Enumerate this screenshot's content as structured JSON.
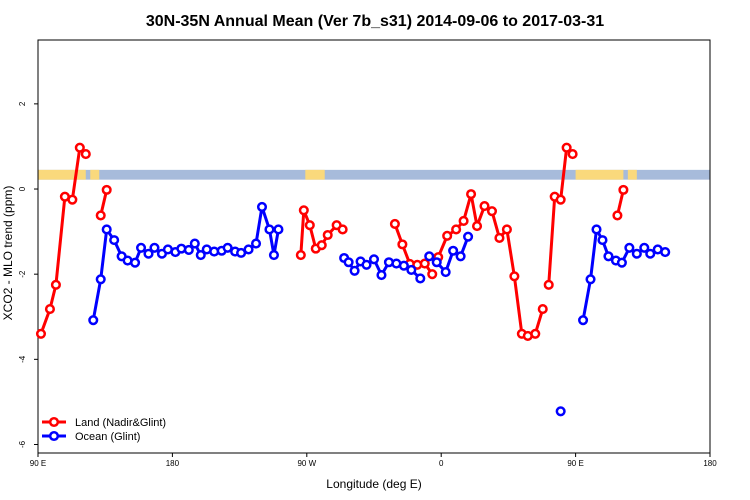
{
  "chart_data": {
    "type": "line",
    "title": "30N-35N Annual Mean (Ver 7b_s31)   2014-09-06 to 2017-03-31",
    "xlabel": "Longitude (deg E)",
    "ylabel": "XCO2 - MLO trend (ppm)",
    "x_tick_labels": [
      "90 E",
      "180",
      "90 W",
      "0",
      "90 E",
      "180"
    ],
    "x_ticks": [
      90,
      180,
      270,
      360,
      450,
      540
    ],
    "xlim": [
      90,
      540
    ],
    "y_tick_labels": [
      "-6",
      "-4",
      "-2",
      "0",
      "2"
    ],
    "y_ticks": [
      -6,
      -4,
      -2,
      0,
      2
    ],
    "ylim": [
      -6.2,
      3.5
    ],
    "grid": false,
    "legend_position": "bottom-left",
    "land_mask_band": {
      "y_range": [
        0.22,
        0.45
      ],
      "ocean_color": "#a7bbdb",
      "land_color": "#fad97c",
      "land_intervals": [
        [
          90,
          122
        ],
        [
          125,
          131
        ],
        [
          269,
          282
        ],
        [
          450,
          482
        ],
        [
          485,
          491
        ]
      ]
    },
    "series": [
      {
        "name": "Land (Nadir&Glint)",
        "color": "#ff0000",
        "segments": [
          {
            "x": [
              92,
              98,
              102,
              108,
              113,
              118,
              122
            ],
            "y": [
              -3.4,
              -2.82,
              -2.25,
              -0.18,
              -0.25,
              0.97,
              0.82
            ]
          },
          {
            "x": [
              132,
              136
            ],
            "y": [
              -0.62,
              -0.02
            ]
          },
          {
            "x": [
              266,
              268,
              272,
              276,
              280,
              284,
              290,
              294
            ],
            "y": [
              -1.55,
              -0.5,
              -0.85,
              -1.4,
              -1.32,
              -1.08,
              -0.85,
              -0.95
            ]
          },
          {
            "x": [
              329,
              334,
              339,
              344,
              349,
              354
            ],
            "y": [
              -0.82,
              -1.3,
              -1.76,
              -1.78,
              -1.75,
              -2.0
            ]
          },
          {
            "x": [
              358,
              364,
              370,
              375,
              380,
              384,
              389,
              394,
              399,
              404,
              409,
              414,
              418,
              423,
              428
            ],
            "y": [
              -1.6,
              -1.1,
              -0.95,
              -0.75,
              -0.12,
              -0.87,
              -0.4,
              -0.52,
              -1.15,
              -0.95,
              -2.05,
              -3.4,
              -3.45,
              -3.4,
              -2.82
            ]
          },
          {
            "x": [
              432,
              436,
              440,
              444,
              448
            ],
            "y": [
              -2.25,
              -0.18,
              -0.25,
              0.97,
              0.82
            ]
          },
          {
            "x": [
              478,
              482
            ],
            "y": [
              -0.62,
              -0.02
            ]
          }
        ]
      },
      {
        "name": "Ocean (Glint)",
        "color": "#0000ff",
        "segments": [
          {
            "x": [
              127,
              132,
              136,
              141,
              146,
              150,
              155,
              159,
              164,
              168,
              173,
              177,
              182,
              186,
              191,
              195,
              199,
              203,
              208,
              213,
              217,
              222,
              226,
              231,
              236,
              240,
              245,
              248,
              251
            ],
            "y": [
              -3.08,
              -2.12,
              -0.95,
              -1.2,
              -1.58,
              -1.68,
              -1.73,
              -1.38,
              -1.52,
              -1.38,
              -1.52,
              -1.42,
              -1.48,
              -1.4,
              -1.43,
              -1.28,
              -1.55,
              -1.42,
              -1.47,
              -1.45,
              -1.38,
              -1.47,
              -1.5,
              -1.42,
              -1.28,
              -0.42,
              -0.95,
              -1.55,
              -0.95
            ]
          },
          {
            "x": [
              295,
              298,
              302,
              306,
              310,
              315,
              320,
              325,
              330,
              335,
              340,
              346
            ],
            "y": [
              -1.62,
              -1.72,
              -1.92,
              -1.7,
              -1.78,
              -1.65,
              -2.02,
              -1.72,
              -1.75,
              -1.8,
              -1.9,
              -2.1
            ]
          },
          {
            "x": [
              352,
              357,
              363,
              368,
              373,
              378
            ],
            "y": [
              -1.58,
              -1.72,
              -1.95,
              -1.45,
              -1.58,
              -1.12
            ]
          },
          {
            "x": [
              455,
              460,
              464,
              468,
              472,
              477,
              481,
              486,
              491,
              496,
              500,
              505,
              510
            ],
            "y": [
              -3.08,
              -2.12,
              -0.95,
              -1.2,
              -1.58,
              -1.68,
              -1.73,
              -1.38,
              -1.52,
              -1.38,
              -1.52,
              -1.42,
              -1.48
            ]
          }
        ],
        "isolated_points": [
          {
            "x": 440,
            "y": -5.22
          }
        ]
      }
    ]
  }
}
